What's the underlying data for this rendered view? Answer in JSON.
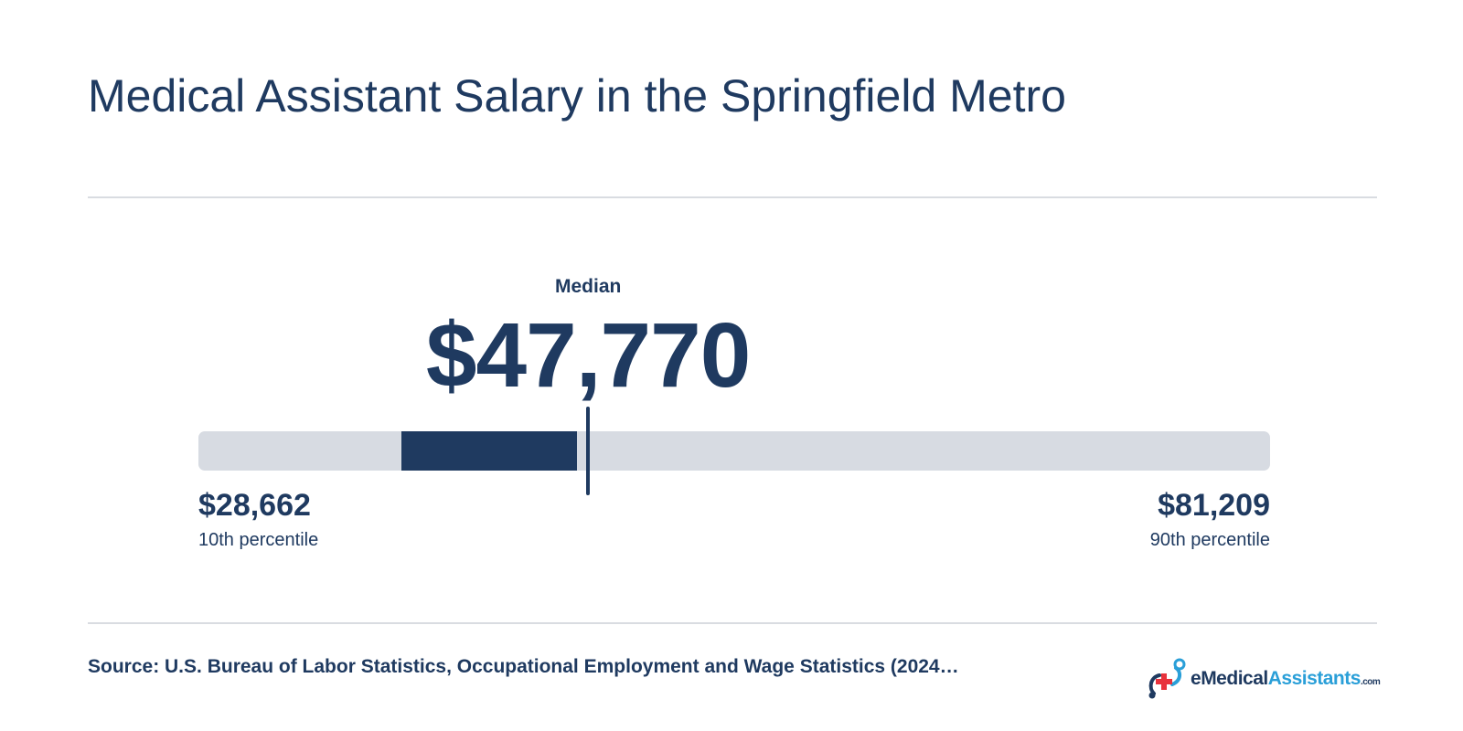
{
  "title": "Medical Assistant Salary in the Springfield Metro",
  "chart_data": {
    "type": "range",
    "scale_min": 28662,
    "scale_max": 81209,
    "median": {
      "label": "Median",
      "value": 47770,
      "display": "$47,770"
    },
    "p10": {
      "label": "10th percentile",
      "value": 28662,
      "display": "$28,662"
    },
    "p90": {
      "label": "90th percentile",
      "value": 81209,
      "display": "$81,209"
    },
    "iqr": {
      "low": 38600,
      "high": 47210
    },
    "colors": {
      "track": "#d7dbe2",
      "highlight": "#1f3a60",
      "text": "#1f3a60"
    }
  },
  "footer": {
    "source": "Source: U.S. Bureau of Labor Statistics, Occupational Employment and Wage Statistics (2024…",
    "logo": {
      "icon": "medical-cross-logo-icon",
      "text_e": "e",
      "text_medical": "Medical",
      "text_assistants": "Assistants",
      "text_com": ".com",
      "accent_color": "#2a9fd8",
      "cross_color": "#e8323c"
    }
  }
}
